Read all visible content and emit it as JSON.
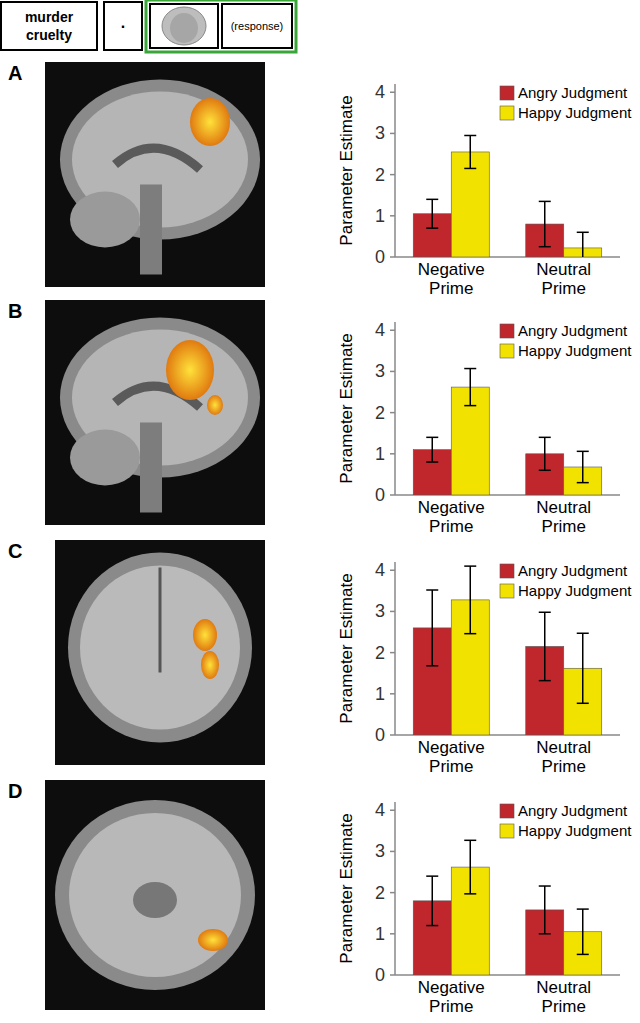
{
  "trial_sequence": {
    "prime_words": [
      "murder",
      "cruelty"
    ],
    "fixation": ".",
    "response": "(response)"
  },
  "chart_data": [
    {
      "type": "bar",
      "title": "A",
      "y_label": "Parameter Estimate",
      "categories": [
        "Negative Prime",
        "Neutral Prime"
      ],
      "series": [
        {
          "name": "Angry Judgment",
          "color": "#c0272d",
          "values": [
            1.05,
            0.8
          ],
          "errors": [
            0.35,
            0.55
          ]
        },
        {
          "name": "Happy Judgment",
          "color": "#f2e200",
          "values": [
            2.55,
            0.22
          ],
          "errors": [
            0.4,
            0.38
          ]
        }
      ],
      "ylim": [
        0,
        4.2
      ],
      "yticks": [
        0,
        1,
        2,
        3,
        4
      ],
      "legend": "upper right",
      "grid": false
    },
    {
      "type": "bar",
      "title": "B",
      "y_label": "Parameter Estimate",
      "categories": [
        "Negative Prime",
        "Neutral Prime"
      ],
      "series": [
        {
          "name": "Angry Judgment",
          "color": "#c0272d",
          "values": [
            1.1,
            1.0
          ],
          "errors": [
            0.3,
            0.4
          ]
        },
        {
          "name": "Happy Judgment",
          "color": "#f2e200",
          "values": [
            2.62,
            0.68
          ],
          "errors": [
            0.45,
            0.38
          ]
        }
      ],
      "ylim": [
        0,
        4.2
      ],
      "yticks": [
        0,
        1,
        2,
        3,
        4
      ],
      "legend": "upper right",
      "grid": false
    },
    {
      "type": "bar",
      "title": "C",
      "y_label": "Parameter Estimate",
      "categories": [
        "Negative Prime",
        "Neutral Prime"
      ],
      "series": [
        {
          "name": "Angry Judgment",
          "color": "#c0272d",
          "values": [
            2.6,
            2.15
          ],
          "errors": [
            0.92,
            0.83
          ]
        },
        {
          "name": "Happy Judgment",
          "color": "#f2e200",
          "values": [
            3.28,
            1.62
          ],
          "errors": [
            0.82,
            0.85
          ]
        }
      ],
      "ylim": [
        0,
        4.2
      ],
      "yticks": [
        0,
        1,
        2,
        3,
        4
      ],
      "legend": "upper right",
      "grid": false
    },
    {
      "type": "bar",
      "title": "D",
      "y_label": "Parameter Estimate",
      "categories": [
        "Negative Prime",
        "Neutral Prime"
      ],
      "series": [
        {
          "name": "Angry Judgment",
          "color": "#c0272d",
          "values": [
            1.8,
            1.58
          ],
          "errors": [
            0.6,
            0.58
          ]
        },
        {
          "name": "Happy Judgment",
          "color": "#f2e200",
          "values": [
            2.62,
            1.05
          ],
          "errors": [
            0.65,
            0.55
          ]
        }
      ],
      "ylim": [
        0,
        4.2
      ],
      "yticks": [
        0,
        1,
        2,
        3,
        4
      ],
      "legend": "upper right",
      "grid": false
    }
  ]
}
